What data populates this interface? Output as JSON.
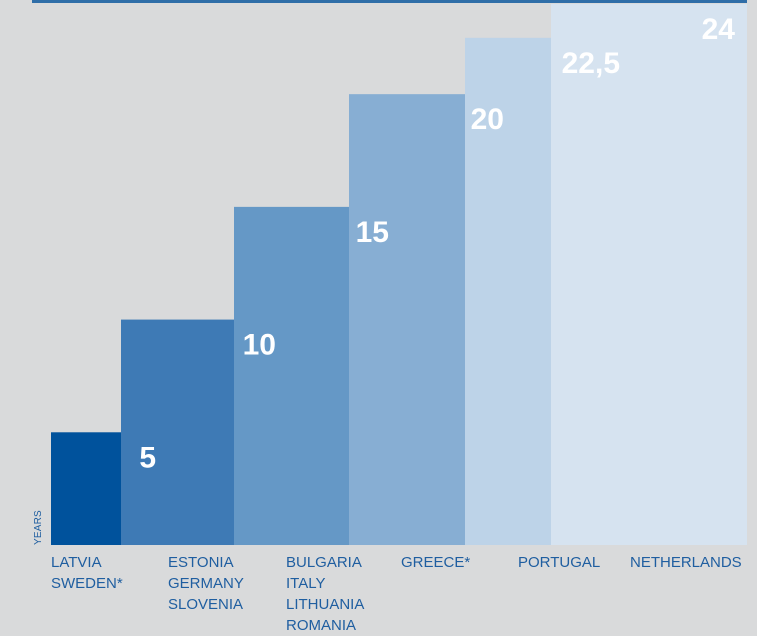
{
  "chart_data": {
    "type": "bar",
    "ylabel": "YEARS",
    "ylim": [
      0,
      24
    ],
    "categories": [
      [
        "LATVIA",
        "SWEDEN*"
      ],
      [
        "ESTONIA",
        "GERMANY",
        "SLOVENIA"
      ],
      [
        "BULGARIA",
        "ITALY",
        "LITHUANIA",
        "ROMANIA"
      ],
      [
        "GREECE*"
      ],
      [
        "PORTUGAL"
      ],
      [
        "NETHERLANDS"
      ]
    ],
    "values": [
      5,
      10,
      15,
      20,
      22.5,
      24
    ],
    "value_labels": [
      "5",
      "10",
      "15",
      "20",
      "22,5",
      "24"
    ],
    "bar_colors": [
      "#00529c",
      "#3e7ab5",
      "#6598c6",
      "#87aed3",
      "#bdd3e8",
      "#d6e3f0"
    ],
    "value_label_colors": [
      "#ffffff",
      "#ffffff",
      "#ffffff",
      "#ffffff",
      "#ffffff",
      "#b6cce3"
    ]
  }
}
